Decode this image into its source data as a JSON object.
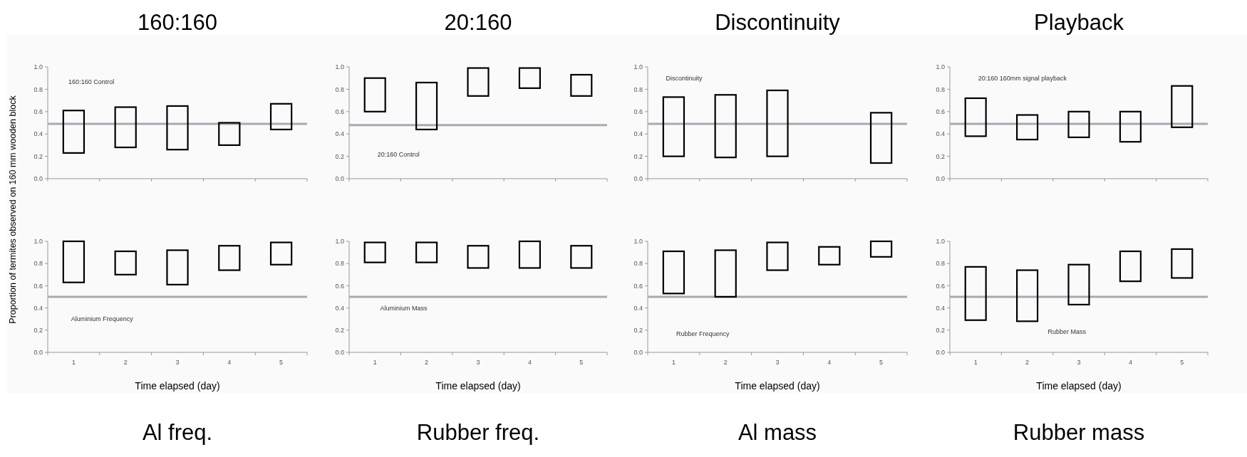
{
  "chart_data": [
    {
      "type": "bar",
      "title": "160:160",
      "ylabel": "Proportion of termites observed on 160 mm wooden block",
      "annotations": [
        "160:160 Control"
      ],
      "categories": [
        null,
        null,
        null,
        null,
        null
      ],
      "base": [
        0.23,
        0.28,
        0.26,
        0.3,
        0.44
      ],
      "values": [
        0.38,
        0.36,
        0.39,
        0.2,
        0.23
      ],
      "color": "#000000",
      "ylim": [
        0,
        1
      ],
      "yticks": [
        {
          "value": 0,
          "label": "0.0"
        },
        {
          "value": 0.2,
          "label": "0.2"
        },
        {
          "value": 0.4,
          "label": "0.4"
        },
        {
          "value": 0.6,
          "label": "0.6"
        },
        {
          "value": 0.8,
          "label": "0.8"
        },
        {
          "value": 1,
          "label": "1.0"
        }
      ],
      "ref_lines": [
        {
          "axis": "y",
          "value": 0.49,
          "color": "#a9a9b3"
        }
      ],
      "tick_labels": "y"
    },
    {
      "type": "bar",
      "title": "20:160",
      "annotations": [
        "20:160 Control"
      ],
      "categories": [
        null,
        null,
        null,
        null,
        null
      ],
      "base": [
        0.6,
        0.44,
        0.74,
        0.81,
        0.74
      ],
      "values": [
        0.3,
        0.42,
        0.25,
        0.18,
        0.19
      ],
      "color": "#000000",
      "ylim": [
        0,
        1
      ],
      "yticks": [
        {
          "value": 0,
          "label": "0.0"
        },
        {
          "value": 0.2,
          "label": "0.2"
        },
        {
          "value": 0.4,
          "label": "0.4"
        },
        {
          "value": 0.6,
          "label": "0.6"
        },
        {
          "value": 0.8,
          "label": "0.8"
        },
        {
          "value": 1,
          "label": "1.0"
        }
      ],
      "ref_lines": [
        {
          "axis": "y",
          "value": 0.48,
          "color": "#a9a9b3"
        }
      ],
      "tick_labels": "y"
    },
    {
      "type": "bar",
      "title": "Discontinuity",
      "annotations": [
        "Discontinuity"
      ],
      "categories": [
        null,
        null,
        null,
        null,
        null
      ],
      "base": [
        0.2,
        0.19,
        0.2,
        null,
        0.14
      ],
      "values": [
        0.53,
        0.56,
        0.59,
        null,
        0.45
      ],
      "color": "#000000",
      "ylim": [
        0,
        1
      ],
      "yticks": [
        {
          "value": 0,
          "label": "0.0"
        },
        {
          "value": 0.2,
          "label": "0.2"
        },
        {
          "value": 0.4,
          "label": "0.4"
        },
        {
          "value": 0.6,
          "label": "0.6"
        },
        {
          "value": 0.8,
          "label": "0.8"
        },
        {
          "value": 1,
          "label": "1.0"
        }
      ],
      "ref_lines": [
        {
          "axis": "y",
          "value": 0.49,
          "color": "#a9a9b3"
        }
      ],
      "tick_labels": "y"
    },
    {
      "type": "bar",
      "title": "Playback",
      "annotations": [
        "20:160 160mm signal playback"
      ],
      "categories": [
        null,
        null,
        null,
        null,
        null
      ],
      "base": [
        0.38,
        0.35,
        0.37,
        0.33,
        0.46
      ],
      "values": [
        0.34,
        0.22,
        0.23,
        0.27,
        0.37
      ],
      "color": "#000000",
      "ylim": [
        0,
        1
      ],
      "yticks": [
        {
          "value": 0,
          "label": "0.0"
        },
        {
          "value": 0.2,
          "label": "0.2"
        },
        {
          "value": 0.4,
          "label": "0.4"
        },
        {
          "value": 0.6,
          "label": "0.6"
        },
        {
          "value": 0.8,
          "label": "0.8"
        },
        {
          "value": 1,
          "label": "1.0"
        }
      ],
      "ref_lines": [
        {
          "axis": "y",
          "value": 0.49,
          "color": "#a9a9b3"
        }
      ],
      "tick_labels": "y"
    },
    {
      "type": "bar",
      "title": "Al freq.",
      "xlabel": "Time elapsed (day)",
      "annotations": [
        "Aluminium Frequency"
      ],
      "categories": [
        "1",
        "2",
        "3",
        "4",
        "5"
      ],
      "base": [
        0.63,
        0.7,
        0.61,
        0.74,
        0.79
      ],
      "values": [
        0.37,
        0.21,
        0.31,
        0.22,
        0.2
      ],
      "color": "#000000",
      "ylim": [
        0,
        1
      ],
      "yticks": [
        {
          "value": 0,
          "label": "0.0"
        },
        {
          "value": 0.2,
          "label": "0.2"
        },
        {
          "value": 0.4,
          "label": "0.4"
        },
        {
          "value": 0.6,
          "label": "0.6"
        },
        {
          "value": 0.8,
          "label": "0.8"
        },
        {
          "value": 1,
          "label": "1.0"
        }
      ],
      "ref_lines": [
        {
          "axis": "y",
          "value": 0.5,
          "color": "#a9a9b3"
        }
      ]
    },
    {
      "type": "bar",
      "title": "Rubber freq.",
      "xlabel": "Time elapsed (day)",
      "annotations": [
        "Aluminium Mass"
      ],
      "categories": [
        "1",
        "2",
        "3",
        "4",
        "5"
      ],
      "base": [
        0.81,
        0.81,
        0.76,
        0.76,
        0.76
      ],
      "values": [
        0.18,
        0.18,
        0.2,
        0.24,
        0.2
      ],
      "color": "#000000",
      "ylim": [
        0,
        1
      ],
      "yticks": [
        {
          "value": 0,
          "label": "0.0"
        },
        {
          "value": 0.2,
          "label": "0.2"
        },
        {
          "value": 0.4,
          "label": "0.4"
        },
        {
          "value": 0.6,
          "label": "0.6"
        },
        {
          "value": 0.8,
          "label": "0.8"
        },
        {
          "value": 1,
          "label": "1.0"
        }
      ],
      "ref_lines": [
        {
          "axis": "y",
          "value": 0.5,
          "color": "#a9a9b3"
        }
      ]
    },
    {
      "type": "bar",
      "title": "Al mass",
      "xlabel": "Time elapsed (day)",
      "annotations": [
        "Rubber Frequency"
      ],
      "categories": [
        "1",
        "2",
        "3",
        "4",
        "5"
      ],
      "base": [
        0.53,
        0.5,
        0.74,
        0.79,
        0.86
      ],
      "values": [
        0.38,
        0.42,
        0.25,
        0.16,
        0.14
      ],
      "color": "#000000",
      "ylim": [
        0,
        1
      ],
      "yticks": [
        {
          "value": 0,
          "label": "0.0"
        },
        {
          "value": 0.2,
          "label": "0.2"
        },
        {
          "value": 0.4,
          "label": "0.4"
        },
        {
          "value": 0.6,
          "label": "0.6"
        },
        {
          "value": 0.8,
          "label": "0.8"
        },
        {
          "value": 1,
          "label": "1.0"
        }
      ],
      "ref_lines": [
        {
          "axis": "y",
          "value": 0.5,
          "color": "#a9a9b3"
        }
      ]
    },
    {
      "type": "bar",
      "title": "Rubber mass",
      "xlabel": "Time elapsed (day)",
      "annotations": [
        "Rubber Mass"
      ],
      "categories": [
        "1",
        "2",
        "3",
        "4",
        "5"
      ],
      "base": [
        0.29,
        0.28,
        0.43,
        0.64,
        0.67
      ],
      "values": [
        0.48,
        0.46,
        0.36,
        0.27,
        0.26
      ],
      "color": "#000000",
      "ylim": [
        0,
        1
      ],
      "yticks": [
        {
          "value": 0,
          "label": "0.0"
        },
        {
          "value": 0.2,
          "label": "0.2"
        },
        {
          "value": 0.4,
          "label": "0.4"
        },
        {
          "value": 0.6,
          "label": "0.6"
        },
        {
          "value": 0.8,
          "label": "0.8"
        },
        {
          "value": 1,
          "label": "1.0"
        }
      ],
      "ref_lines": [
        {
          "axis": "y",
          "value": 0.5,
          "color": "#a9a9b3"
        }
      ]
    }
  ]
}
